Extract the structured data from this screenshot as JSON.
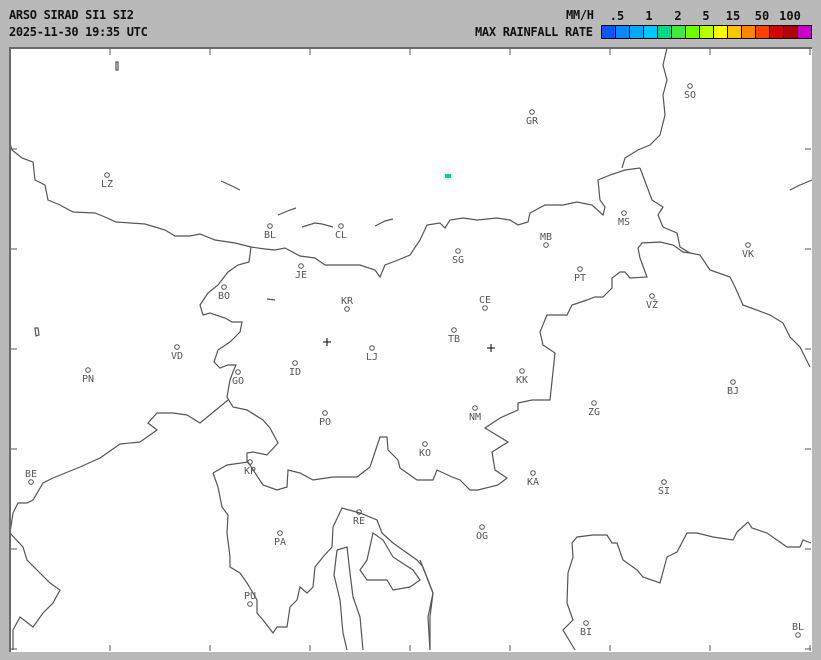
{
  "header": {
    "title": "ARSO SIRAD SI1 SI2",
    "timestamp": "2025-11-30 19:35 UTC",
    "unit": "MM/H",
    "legend_title": "MAX RAINFALL RATE"
  },
  "legend": {
    "labels": [
      ".5",
      "1",
      "2",
      "5",
      "15",
      "50",
      "100"
    ],
    "colors": [
      "#0a56ff",
      "#0a88ff",
      "#00aaff",
      "#00c8ff",
      "#00d884",
      "#40e840",
      "#70ff00",
      "#b8ff00",
      "#ffff00",
      "#ffc400",
      "#ff8400",
      "#ff4000",
      "#d40000",
      "#b00000",
      "#c800c8"
    ]
  },
  "map": {
    "cities": [
      "SO",
      "GR",
      "LZ",
      "BL",
      "CL",
      "MB",
      "MS",
      "SG",
      "VK",
      "JE",
      "PT",
      "BO",
      "KR",
      "CE",
      "VŽ",
      "TB",
      "VD",
      "LJ",
      "ID",
      "PN",
      "GO",
      "KK",
      "BJ",
      "ZG",
      "NM",
      "PO",
      "KO",
      "KP",
      "KA",
      "SI",
      "BE",
      "RE",
      "OG",
      "PA",
      "PU",
      "BI",
      "BL"
    ],
    "radar_marker": "cross-icon",
    "line_color": "#555555",
    "echo_color": "#00d884"
  }
}
